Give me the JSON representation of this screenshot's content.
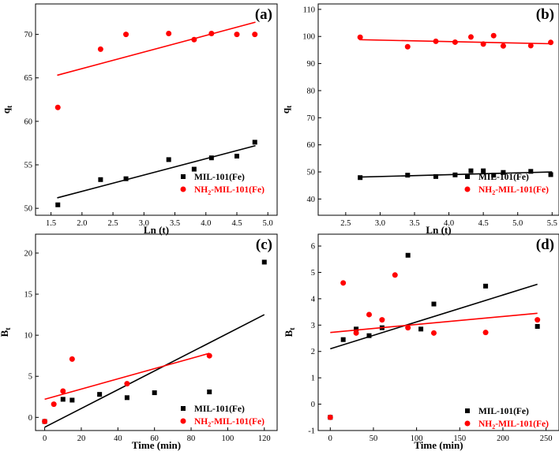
{
  "chart_data": [
    {
      "id": "a",
      "type": "scatter",
      "panel_label": "(a)",
      "xlabel": "Ln (t)",
      "ylabel": "q",
      "ylabel_sub": "t",
      "xlim": [
        1.25,
        5.15
      ],
      "ylim": [
        49.2,
        73.5
      ],
      "xticks": [
        1.5,
        2.0,
        2.5,
        3.0,
        3.5,
        4.0,
        4.5,
        5.0
      ],
      "xtick_labels": [
        "1.5",
        "2.0",
        "2.5",
        "3.0",
        "3.5",
        "4.0",
        "4.5",
        "5.0"
      ],
      "yticks": [
        50,
        55,
        60,
        65,
        70
      ],
      "ytick_labels": [
        "50",
        "55",
        "60",
        "65",
        "70"
      ],
      "legend_position": "bottom-right",
      "series": [
        {
          "name": "MIL-101(Fe)",
          "name_main": "MIL-101(Fe)",
          "name_sub": "",
          "name_tail": "",
          "marker": "square",
          "color": "#000000",
          "x": [
            1.61,
            2.3,
            2.71,
            3.4,
            3.81,
            4.09,
            4.5,
            4.79
          ],
          "y": [
            50.4,
            53.3,
            53.4,
            55.6,
            54.5,
            55.8,
            56.0,
            57.6
          ],
          "fit": {
            "x": [
              1.6,
              4.8
            ],
            "y": [
              51.2,
              57.2
            ]
          }
        },
        {
          "name": "NH2-MIL-101(Fe)",
          "name_main": "NH",
          "name_sub": "2",
          "name_tail": "-MIL-101(Fe)",
          "marker": "circle",
          "color": "#ff0000",
          "x": [
            1.61,
            2.3,
            2.71,
            3.4,
            3.81,
            4.09,
            4.5,
            4.79
          ],
          "y": [
            61.6,
            68.3,
            70.0,
            70.1,
            69.4,
            70.1,
            70.0,
            70.0
          ],
          "fit": {
            "x": [
              1.6,
              4.8
            ],
            "y": [
              65.3,
              71.4
            ]
          }
        }
      ]
    },
    {
      "id": "b",
      "type": "scatter",
      "panel_label": "(b)",
      "xlabel": "Ln (t)",
      "ylabel": "q",
      "ylabel_sub": "t",
      "xlim": [
        2.1,
        5.6
      ],
      "ylim": [
        34,
        112
      ],
      "xticks": [
        2.5,
        3.0,
        3.5,
        4.0,
        4.5,
        5.0,
        5.5
      ],
      "xtick_labels": [
        "2.5",
        "3.0",
        "3.5",
        "4.0",
        "4.5",
        "5.0",
        "5.5"
      ],
      "yticks": [
        40,
        50,
        60,
        70,
        80,
        90,
        100,
        110
      ],
      "ytick_labels": [
        "40",
        "50",
        "60",
        "70",
        "80",
        "90",
        "100",
        "110"
      ],
      "legend_position": "bottom-right",
      "series": [
        {
          "name": "MIL-101(Fe)",
          "name_main": "MIL-101(Fe)",
          "name_sub": "",
          "name_tail": "",
          "marker": "square",
          "color": "#000000",
          "x": [
            2.71,
            3.4,
            3.81,
            4.09,
            4.32,
            4.5,
            4.65,
            4.79,
            5.19,
            5.48
          ],
          "y": [
            47.9,
            48.8,
            48.3,
            48.9,
            50.4,
            50.4,
            48.8,
            49.8,
            50.2,
            49.0
          ],
          "fit": {
            "x": [
              2.7,
              5.5
            ],
            "y": [
              48.1,
              50.0
            ]
          }
        },
        {
          "name": "NH2-MIL-101(Fe)",
          "name_main": "NH",
          "name_sub": "2",
          "name_tail": "-MIL-101(Fe)",
          "marker": "circle",
          "color": "#ff0000",
          "x": [
            2.71,
            3.4,
            3.81,
            4.09,
            4.32,
            4.5,
            4.65,
            4.79,
            5.19,
            5.48
          ],
          "y": [
            99.7,
            96.2,
            98.2,
            97.9,
            99.8,
            97.2,
            100.3,
            96.5,
            96.6,
            97.8
          ],
          "fit": {
            "x": [
              2.7,
              5.5
            ],
            "y": [
              98.8,
              97.3
            ]
          }
        }
      ]
    },
    {
      "id": "c",
      "type": "scatter",
      "panel_label": "(c)",
      "xlabel": "Time (min)",
      "ylabel": "B",
      "ylabel_sub": "t",
      "xlim": [
        -5,
        127
      ],
      "ylim": [
        -1.6,
        22.3
      ],
      "xticks": [
        0,
        20,
        40,
        60,
        80,
        100,
        120
      ],
      "xtick_labels": [
        "0",
        "20",
        "40",
        "60",
        "80",
        "100",
        "120"
      ],
      "yticks": [
        0,
        5,
        10,
        15,
        20
      ],
      "ytick_labels": [
        "0",
        "5",
        "10",
        "15",
        "20"
      ],
      "legend_position": "bottom-right",
      "series": [
        {
          "name": "MIL-101(Fe)",
          "name_main": "MIL-101(Fe)",
          "name_sub": "",
          "name_tail": "",
          "marker": "square",
          "color": "#000000",
          "x": [
            0,
            10,
            15,
            30,
            45,
            60,
            90,
            120
          ],
          "y": [
            -0.5,
            2.2,
            2.1,
            2.8,
            2.4,
            3.0,
            3.1,
            18.9
          ],
          "fit": {
            "x": [
              0,
              120
            ],
            "y": [
              -1.2,
              12.5
            ]
          }
        },
        {
          "name": "NH2-MIL-101(Fe)",
          "name_main": "NH",
          "name_sub": "2",
          "name_tail": "-MIL-101(Fe)",
          "marker": "circle",
          "color": "#ff0000",
          "x": [
            0,
            5,
            10,
            15,
            45,
            90
          ],
          "y": [
            -0.5,
            1.6,
            3.2,
            7.1,
            4.1,
            7.5
          ],
          "fit": {
            "x": [
              0,
              90
            ],
            "y": [
              2.2,
              7.8
            ]
          }
        }
      ]
    },
    {
      "id": "d",
      "type": "scatter",
      "panel_label": "(d)",
      "xlabel": "Time (min)",
      "ylabel": "B",
      "ylabel_sub": "t",
      "xlim": [
        -14,
        265
      ],
      "ylim": [
        -1.0,
        6.45
      ],
      "xticks": [
        0,
        50,
        100,
        150,
        200,
        250
      ],
      "xtick_labels": [
        "0",
        "50",
        "100",
        "150",
        "200",
        "250"
      ],
      "yticks": [
        -1,
        0,
        1,
        2,
        3,
        4,
        5,
        6
      ],
      "ytick_labels": [
        "-1",
        "0",
        "1",
        "2",
        "3",
        "4",
        "5",
        "6"
      ],
      "legend_position": "bottom-right",
      "series": [
        {
          "name": "MIL-101(Fe)",
          "name_main": "MIL-101(Fe)",
          "name_sub": "",
          "name_tail": "",
          "marker": "square",
          "color": "#000000",
          "x": [
            0,
            15,
            30,
            45,
            60,
            90,
            105,
            120,
            180,
            240
          ],
          "y": [
            -0.5,
            2.45,
            2.85,
            2.6,
            2.9,
            5.65,
            2.85,
            3.8,
            4.48,
            2.95
          ],
          "fit": {
            "x": [
              0,
              240
            ],
            "y": [
              2.1,
              4.55
            ]
          }
        },
        {
          "name": "NH2-MIL-101(Fe)",
          "name_main": "NH",
          "name_sub": "2",
          "name_tail": "-MIL-101(Fe)",
          "marker": "circle",
          "color": "#ff0000",
          "x": [
            0,
            15,
            30,
            45,
            60,
            75,
            90,
            120,
            180,
            240
          ],
          "y": [
            -0.5,
            4.6,
            2.7,
            3.4,
            3.2,
            4.9,
            2.9,
            2.7,
            2.72,
            3.2
          ],
          "fit": {
            "x": [
              0,
              240
            ],
            "y": [
              2.72,
              3.45
            ]
          }
        }
      ]
    }
  ]
}
